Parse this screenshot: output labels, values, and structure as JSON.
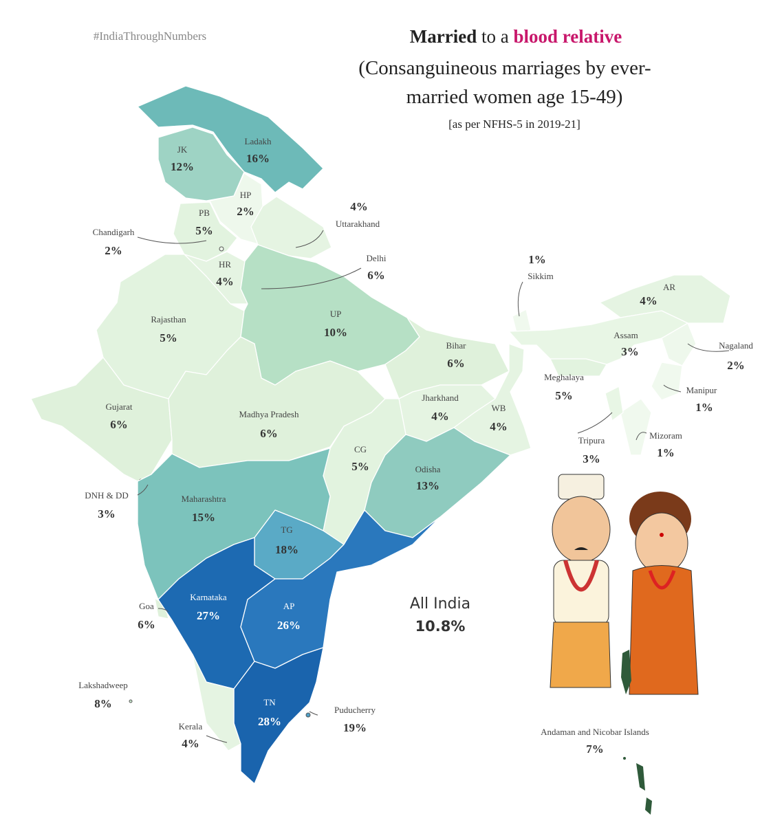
{
  "header": {
    "tag": "#IndiaThroughNumbers",
    "title_bold": "Married",
    "title_mid": "to a",
    "title_accent": "blood relative",
    "subtitle_lines": [
      "(Consanguineous marriages by ever-",
      "married women age 15-49)"
    ],
    "source": "[as per NFHS-5 in 2019-21]"
  },
  "regions": [
    {
      "name": "Ladakh",
      "value": 16,
      "label": "16%",
      "color": "#6dbab8"
    },
    {
      "name": "JK",
      "value": 12,
      "label": "12%",
      "color": "#9ed3c4"
    },
    {
      "name": "HP",
      "value": 2,
      "label": "2%",
      "color": "#eef8ec"
    },
    {
      "name": "PB",
      "value": 5,
      "label": "5%",
      "color": "#e2f3df"
    },
    {
      "name": "Chandigarh",
      "value": 2,
      "label": "2%",
      "color": "#eef8ec"
    },
    {
      "name": "Uttarakhand",
      "value": 4,
      "label": "4%",
      "color": "#e5f4e2"
    },
    {
      "name": "Delhi",
      "value": 6,
      "label": "6%",
      "color": "#dff1db"
    },
    {
      "name": "HR",
      "value": 4,
      "label": "4%",
      "color": "#e5f4e2"
    },
    {
      "name": "Rajasthan",
      "value": 5,
      "label": "5%",
      "color": "#e2f3df"
    },
    {
      "name": "UP",
      "value": 10,
      "label": "10%",
      "color": "#b6e0c5"
    },
    {
      "name": "Bihar",
      "value": 6,
      "label": "6%",
      "color": "#dff1db"
    },
    {
      "name": "Sikkim",
      "value": 1,
      "label": "1%",
      "color": "#f0f9ee"
    },
    {
      "name": "AR",
      "value": 4,
      "label": "4%",
      "color": "#e5f4e2"
    },
    {
      "name": "Assam",
      "value": 3,
      "label": "3%",
      "color": "#e8f6e5"
    },
    {
      "name": "Nagaland",
      "value": 2,
      "label": "2%",
      "color": "#eef8ec"
    },
    {
      "name": "Meghalaya",
      "value": 5,
      "label": "5%",
      "color": "#e2f3df"
    },
    {
      "name": "Manipur",
      "value": 1,
      "label": "1%",
      "color": "#f0f9ee"
    },
    {
      "name": "Mizoram",
      "value": 1,
      "label": "1%",
      "color": "#f0f9ee"
    },
    {
      "name": "Tripura",
      "value": 3,
      "label": "3%",
      "color": "#e8f6e5"
    },
    {
      "name": "Gujarat",
      "value": 6,
      "label": "6%",
      "color": "#dff1db"
    },
    {
      "name": "Madhya Pradesh",
      "value": 6,
      "label": "6%",
      "color": "#dff1db"
    },
    {
      "name": "Jharkhand",
      "value": 4,
      "label": "4%",
      "color": "#e5f4e2"
    },
    {
      "name": "WB",
      "value": 4,
      "label": "4%",
      "color": "#e5f4e2"
    },
    {
      "name": "CG",
      "value": 5,
      "label": "5%",
      "color": "#e2f3df"
    },
    {
      "name": "Odisha",
      "value": 13,
      "label": "13%",
      "color": "#8fcbbf"
    },
    {
      "name": "DNH & DD",
      "value": 3,
      "label": "3%",
      "color": "#e8f6e5"
    },
    {
      "name": "Maharashtra",
      "value": 15,
      "label": "15%",
      "color": "#7cc3bc"
    },
    {
      "name": "TG",
      "value": 18,
      "label": "18%",
      "color": "#5aaac6"
    },
    {
      "name": "Goa",
      "value": 6,
      "label": "6%",
      "color": "#dff1db"
    },
    {
      "name": "Karnataka",
      "value": 27,
      "label": "27%",
      "color": "#1d6ab2"
    },
    {
      "name": "AP",
      "value": 26,
      "label": "26%",
      "color": "#2a78bd"
    },
    {
      "name": "Lakshadweep",
      "value": 8,
      "label": "8%",
      "color": "#cbe9cf"
    },
    {
      "name": "TN",
      "value": 28,
      "label": "28%",
      "color": "#1a64ad"
    },
    {
      "name": "Puducherry",
      "value": 19,
      "label": "19%",
      "color": "#4f9fc6"
    },
    {
      "name": "Kerala",
      "value": 4,
      "label": "4%",
      "color": "#e5f4e2"
    },
    {
      "name": "Andaman and Nicobar Islands",
      "value": 7,
      "label": "7%",
      "color": "#d5edd5"
    }
  ],
  "all_india": {
    "name": "All India",
    "value": 10.8,
    "label": "10.8%"
  }
}
